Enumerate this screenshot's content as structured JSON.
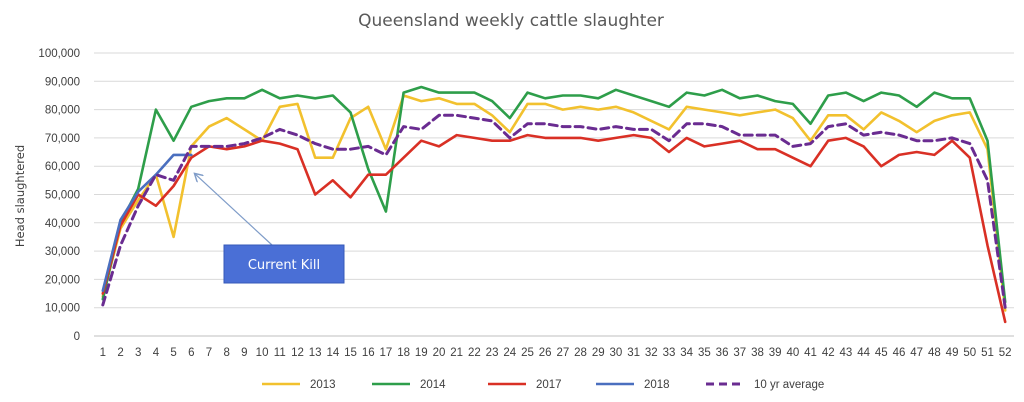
{
  "chart_data": {
    "type": "line",
    "title": "Queensland weekly cattle slaughter",
    "xlabel": "",
    "ylabel": "Head slaughtered",
    "ylim": [
      0,
      100000
    ],
    "yticks": [
      "0",
      "10,000",
      "20,000",
      "30,000",
      "40,000",
      "50,000",
      "60,000",
      "70,000",
      "80,000",
      "90,000",
      "100,000"
    ],
    "grid": true,
    "legend_position": "bottom",
    "x": [
      1,
      2,
      3,
      4,
      5,
      6,
      7,
      8,
      9,
      10,
      11,
      12,
      13,
      14,
      15,
      16,
      17,
      18,
      19,
      20,
      21,
      22,
      23,
      24,
      25,
      26,
      27,
      28,
      29,
      30,
      31,
      32,
      33,
      34,
      35,
      36,
      37,
      38,
      39,
      40,
      41,
      42,
      43,
      44,
      45,
      46,
      47,
      48,
      49,
      50,
      51,
      52
    ],
    "series": [
      {
        "name": "2013",
        "color": "#F2C12E",
        "dash": false,
        "values": [
          14000,
          38000,
          48000,
          57000,
          35000,
          67000,
          74000,
          77000,
          73000,
          69000,
          81000,
          82000,
          63000,
          63000,
          77000,
          81000,
          66000,
          85000,
          83000,
          84000,
          82000,
          82000,
          78000,
          72000,
          82000,
          82000,
          80000,
          81000,
          80000,
          81000,
          79000,
          76000,
          73000,
          81000,
          80000,
          79000,
          78000,
          79000,
          80000,
          77000,
          69000,
          78000,
          78000,
          73000,
          79000,
          76000,
          72000,
          76000,
          78000,
          79000,
          66000,
          9000
        ]
      },
      {
        "name": "2014",
        "color": "#2E9E4A",
        "dash": false,
        "values": [
          13000,
          40000,
          52000,
          80000,
          69000,
          81000,
          83000,
          84000,
          84000,
          87000,
          84000,
          85000,
          84000,
          85000,
          79000,
          59000,
          44000,
          86000,
          88000,
          86000,
          86000,
          86000,
          83000,
          77000,
          86000,
          84000,
          85000,
          85000,
          84000,
          87000,
          85000,
          83000,
          81000,
          86000,
          85000,
          87000,
          84000,
          85000,
          83000,
          82000,
          75000,
          85000,
          86000,
          83000,
          86000,
          85000,
          81000,
          86000,
          84000,
          84000,
          69000,
          12000
        ]
      },
      {
        "name": "2017",
        "color": "#D93025",
        "dash": false,
        "values": [
          15000,
          39000,
          50000,
          46000,
          53000,
          63000,
          67000,
          66000,
          67000,
          69000,
          68000,
          66000,
          50000,
          55000,
          49000,
          57000,
          57000,
          63000,
          69000,
          67000,
          71000,
          70000,
          69000,
          69000,
          71000,
          70000,
          70000,
          70000,
          69000,
          70000,
          71000,
          70000,
          65000,
          70000,
          67000,
          68000,
          69000,
          66000,
          66000,
          63000,
          60000,
          69000,
          70000,
          67000,
          60000,
          64000,
          65000,
          64000,
          69000,
          63000,
          32000,
          5000
        ]
      },
      {
        "name": "2018",
        "color": "#4A6FBF",
        "dash": false,
        "values": [
          16000,
          41000,
          51000,
          57000,
          64000,
          64000,
          null,
          null,
          null,
          null,
          null,
          null,
          null,
          null,
          null,
          null,
          null,
          null,
          null,
          null,
          null,
          null,
          null,
          null,
          null,
          null,
          null,
          null,
          null,
          null,
          null,
          null,
          null,
          null,
          null,
          null,
          null,
          null,
          null,
          null,
          null,
          null,
          null,
          null,
          null,
          null,
          null,
          null,
          null,
          null,
          null,
          null
        ]
      },
      {
        "name": "10 yr average",
        "color": "#6A2C91",
        "dash": true,
        "values": [
          11000,
          32000,
          46000,
          57000,
          55000,
          67000,
          67000,
          67000,
          68000,
          70000,
          73000,
          71000,
          68000,
          66000,
          66000,
          67000,
          64000,
          74000,
          73000,
          78000,
          78000,
          77000,
          76000,
          70000,
          75000,
          75000,
          74000,
          74000,
          73000,
          74000,
          73000,
          73000,
          69000,
          75000,
          75000,
          74000,
          71000,
          71000,
          71000,
          67000,
          68000,
          74000,
          75000,
          71000,
          72000,
          71000,
          69000,
          69000,
          70000,
          68000,
          55000,
          10000
        ]
      }
    ],
    "annotations": [
      {
        "text": "Current Kill",
        "points_to_x": 6,
        "points_to_y": 60000
      }
    ]
  }
}
